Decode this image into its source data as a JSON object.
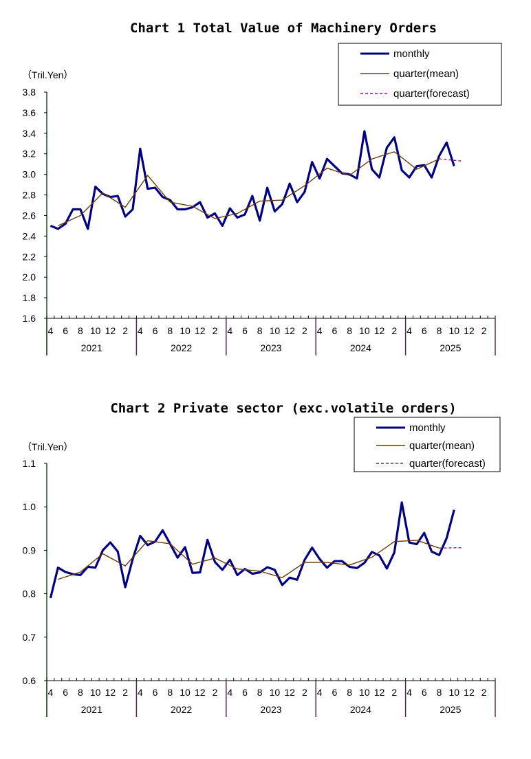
{
  "colors": {
    "monthly": "#000080",
    "quarter_mean": "#6B3A0A",
    "quarter_forecast": "#8B1A8B",
    "axis": "#1F4E1F"
  },
  "legend": {
    "monthly": "monthly",
    "mean": "quarter(mean)",
    "forecast": "quarter(forecast)"
  },
  "x_axis": {
    "month_ticks": [
      "4",
      "6",
      "8",
      "10",
      "12",
      "2"
    ],
    "years": [
      "2021",
      "2022",
      "2023",
      "2024",
      "2025"
    ]
  },
  "chart_data": [
    {
      "type": "line",
      "title": "Chart 1 Total Value of Machinery Orders",
      "ylabel": "（Tril.Yen）",
      "ylim": [
        1.6,
        3.8
      ],
      "yticks": [
        "1.6",
        "1.8",
        "2.0",
        "2.2",
        "2.4",
        "2.6",
        "2.8",
        "3.0",
        "3.2",
        "3.4",
        "3.6",
        "3.8"
      ],
      "x_range": "2021-04 to 2026-03 (monthly)",
      "legend_position": "top-right",
      "series": [
        {
          "name": "monthly",
          "start": "2021-04",
          "values": [
            2.5,
            2.47,
            2.52,
            2.66,
            2.66,
            2.47,
            2.88,
            2.81,
            2.78,
            2.79,
            2.59,
            2.66,
            3.25,
            2.86,
            2.87,
            2.78,
            2.75,
            2.66,
            2.66,
            2.68,
            2.73,
            2.58,
            2.62,
            2.5,
            2.67,
            2.58,
            2.61,
            2.79,
            2.55,
            2.87,
            2.64,
            2.71,
            2.91,
            2.73,
            2.83,
            3.12,
            2.96,
            3.15,
            3.08,
            3.01,
            3.0,
            2.96,
            3.42,
            3.05,
            2.97,
            3.26,
            3.36,
            3.04,
            2.97,
            3.08,
            3.09,
            2.97,
            3.18,
            3.31,
            3.08
          ]
        },
        {
          "name": "quarter(mean)",
          "start": "2021-05",
          "step_months": 3,
          "values": [
            2.5,
            2.6,
            2.82,
            2.68,
            2.99,
            2.73,
            2.69,
            2.57,
            2.62,
            2.74,
            2.75,
            2.89,
            3.06,
            2.99,
            3.15,
            3.22,
            3.05,
            3.15
          ]
        },
        {
          "name": "quarter(forecast)",
          "points": [
            [
              "2025-08",
              3.15
            ],
            [
              "2025-11",
              3.13
            ]
          ]
        }
      ]
    },
    {
      "type": "line",
      "title": "Chart 2 Private sector (exc.volatile orders)",
      "ylabel": "（Tril.Yen）",
      "ylim": [
        0.6,
        1.1
      ],
      "yticks": [
        "0.6",
        "0.7",
        "0.8",
        "0.9",
        "1.0",
        "1.1"
      ],
      "x_range": "2021-04 to 2026-03 (monthly)",
      "legend_position": "top-right",
      "series": [
        {
          "name": "monthly",
          "start": "2021-04",
          "values": [
            0.79,
            0.86,
            0.85,
            0.845,
            0.843,
            0.862,
            0.86,
            0.9,
            0.918,
            0.897,
            0.815,
            0.88,
            0.933,
            0.912,
            0.92,
            0.946,
            0.915,
            0.883,
            0.907,
            0.848,
            0.849,
            0.924,
            0.873,
            0.855,
            0.878,
            0.843,
            0.857,
            0.846,
            0.849,
            0.861,
            0.855,
            0.82,
            0.837,
            0.832,
            0.878,
            0.906,
            0.88,
            0.86,
            0.875,
            0.875,
            0.862,
            0.859,
            0.871,
            0.896,
            0.888,
            0.858,
            0.895,
            1.01,
            0.918,
            0.914,
            0.94,
            0.897,
            0.889,
            0.928,
            0.993
          ]
        },
        {
          "name": "quarter(mean)",
          "start": "2021-05",
          "step_months": 3,
          "values": [
            0.833,
            0.85,
            0.892,
            0.864,
            0.922,
            0.915,
            0.868,
            0.882,
            0.857,
            0.852,
            0.837,
            0.872,
            0.872,
            0.866,
            0.884,
            0.92,
            0.923,
            0.905
          ]
        },
        {
          "name": "quarter(forecast)",
          "points": [
            [
              "2025-08",
              0.905
            ],
            [
              "2025-11",
              0.906
            ]
          ]
        }
      ]
    }
  ]
}
